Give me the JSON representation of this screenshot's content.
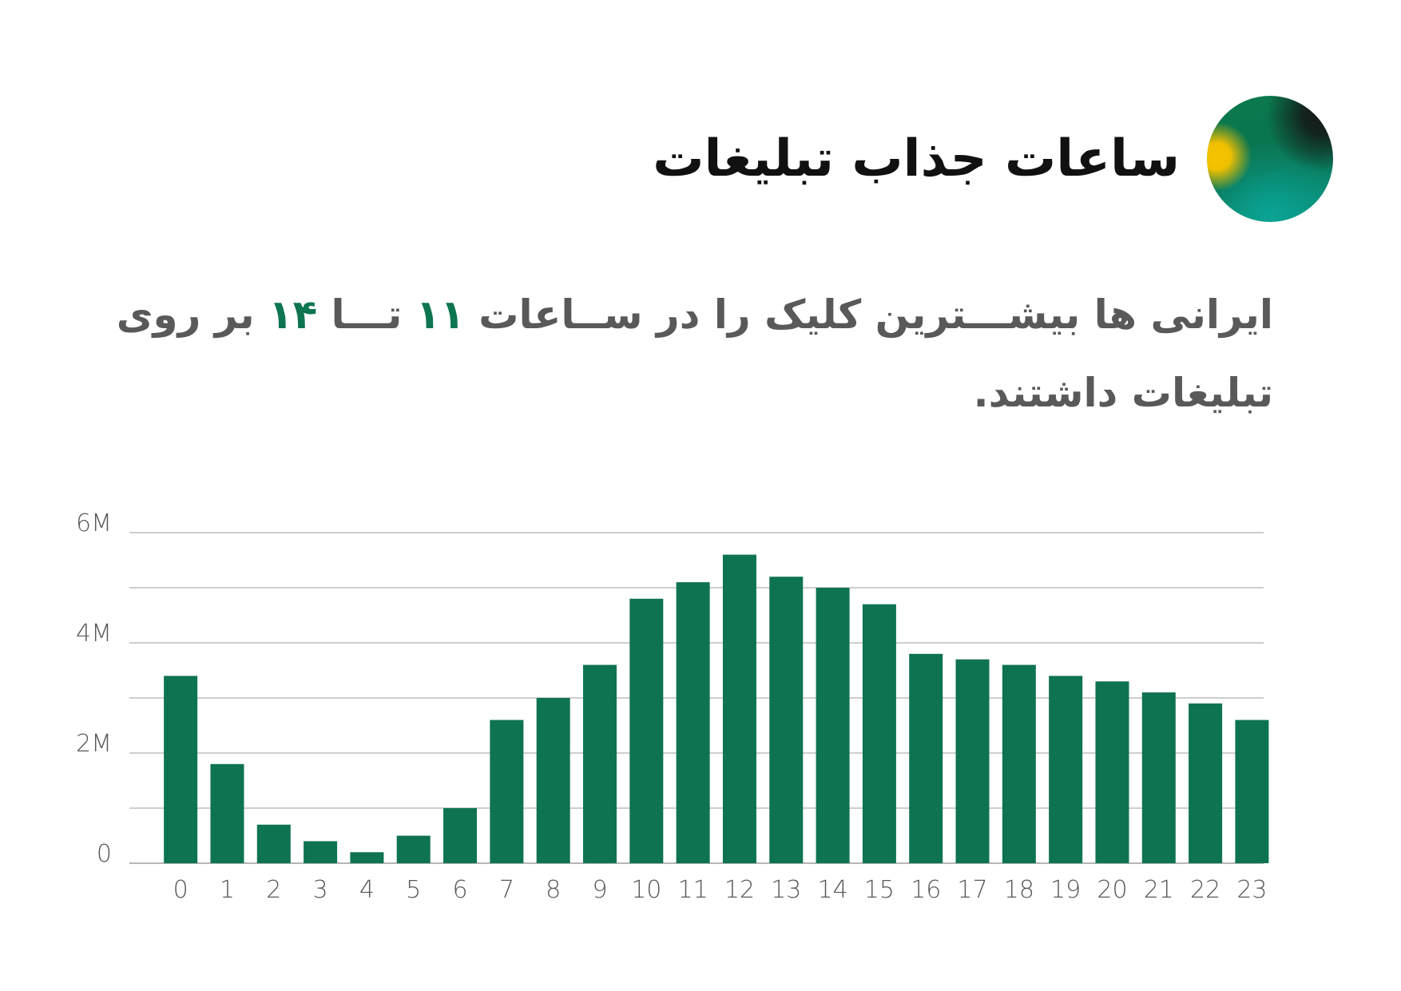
{
  "header": {
    "title": "ساعات جذاب تبلیغات",
    "logo_icon": "gradient-orb-logo-icon"
  },
  "subtitle": {
    "part1": "ایرانی ها بیشـــترین کلیک را در ســاعات ",
    "highlight1": "۱۱",
    "part2": " تـــا ",
    "highlight2": "۱۴",
    "part3": " بر روی تبلیغات داشتند.",
    "highlight_color": "#0d7550"
  },
  "chart_data": {
    "type": "bar",
    "categories": [
      "0",
      "1",
      "2",
      "3",
      "4",
      "5",
      "6",
      "7",
      "8",
      "9",
      "10",
      "11",
      "12",
      "13",
      "14",
      "15",
      "16",
      "17",
      "18",
      "19",
      "20",
      "21",
      "22",
      "23"
    ],
    "values": [
      3400000,
      1800000,
      700000,
      400000,
      200000,
      500000,
      1000000,
      2600000,
      3000000,
      3600000,
      4800000,
      5100000,
      5600000,
      5200000,
      5000000,
      4700000,
      3800000,
      3700000,
      3600000,
      3400000,
      3300000,
      3100000,
      2900000,
      2600000
    ],
    "ylim": [
      0,
      6000000
    ],
    "y_ticks": [
      {
        "value": 0,
        "label": "0"
      },
      {
        "value": 2000000,
        "label": "2M"
      },
      {
        "value": 4000000,
        "label": "4M"
      },
      {
        "value": 6000000,
        "label": "6M"
      }
    ],
    "gridlines": [
      1000000,
      2000000,
      3000000,
      4000000,
      5000000,
      6000000
    ],
    "grid": true,
    "bar_color": "#0e7350",
    "grid_color": "#bdbdbd",
    "label_color": "#595959"
  }
}
